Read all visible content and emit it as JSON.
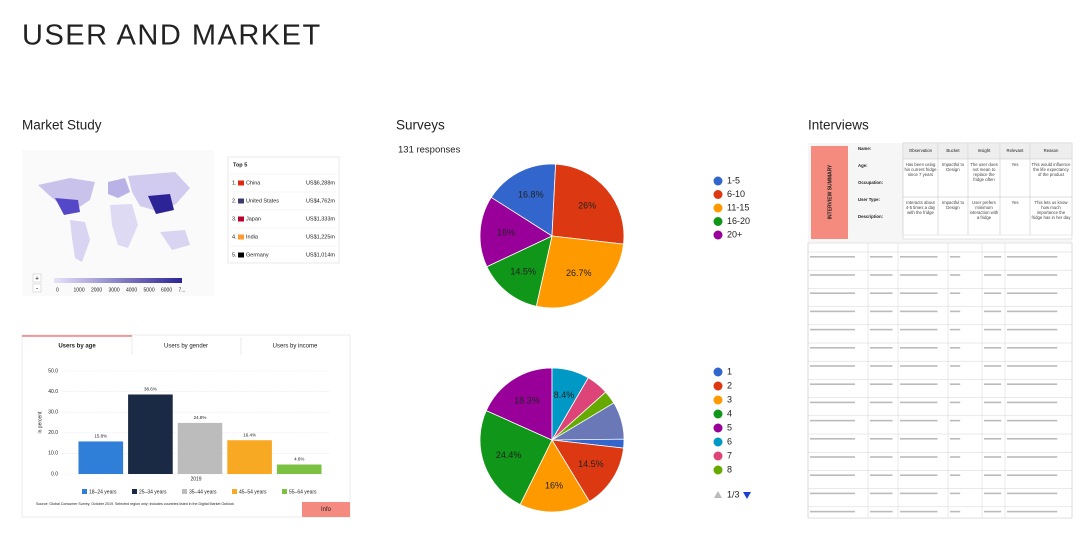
{
  "title": "USER AND MARKET",
  "sections": {
    "market": "Market Study",
    "surveys": "Surveys",
    "interviews": "Interviews"
  },
  "responses": "131 responses",
  "map": {
    "zoom_in": "+",
    "zoom_out": "-",
    "scale": [
      "0",
      "1000",
      "2000",
      "3000",
      "4000",
      "5000",
      "6000",
      "7..."
    ]
  },
  "top5": {
    "title": "Top 5",
    "rows": [
      {
        "rank": "1.",
        "country": "China",
        "value": "US$6,288m"
      },
      {
        "rank": "2.",
        "country": "United States",
        "value": "US$4,762m"
      },
      {
        "rank": "3.",
        "country": "Japan",
        "value": "US$1,333m"
      },
      {
        "rank": "4.",
        "country": "India",
        "value": "US$1,225m"
      },
      {
        "rank": "5.",
        "country": "Germany",
        "value": "US$1,014m"
      }
    ]
  },
  "tabs": [
    "Users by age",
    "Users by gender",
    "Users by income"
  ],
  "info": "Info",
  "interview": {
    "card_title": "INTERVIEW SUMMARY",
    "fields": [
      "Name:",
      "Age:",
      "Occupation:",
      "User Type:",
      "Description:"
    ],
    "headers": [
      "Observation",
      "Bucket",
      "Insight",
      "Relevant",
      "Reason"
    ],
    "rows": [
      [
        "Has been using his current fridge since 7 years",
        "Impactful to Design",
        "The user does not mean to replace the fridge often",
        "Yes",
        "This would influence the life expectancy of the product"
      ],
      [
        "Interacts about 4-5 times a day with the fridge",
        "Impactful to Design",
        "User prefers minimum interaction with a fridge",
        "Yes",
        "This lets us know how much importance the fridge has in her day"
      ]
    ]
  },
  "chart_data": [
    {
      "type": "bar",
      "categories": [
        "2019"
      ],
      "ylabel": "in percent",
      "ylim": [
        0,
        50
      ],
      "yticks": [
        {
          "value": 0,
          "label": "0.0"
        },
        {
          "value": 10,
          "label": "10.0"
        },
        {
          "value": 20,
          "label": "20.0"
        },
        {
          "value": 30,
          "label": "30.0"
        },
        {
          "value": 40,
          "label": "40.0"
        },
        {
          "value": 50,
          "label": "50.0"
        }
      ],
      "grid": true,
      "series": [
        {
          "name": "18–24 years",
          "color": "#2f7ed8",
          "values": [
            15.8
          ],
          "value_labels": [
            "15.8%"
          ]
        },
        {
          "name": "25–34 years",
          "color": "#1b2a44",
          "values": [
            38.6
          ],
          "value_labels": [
            "38.6%"
          ]
        },
        {
          "name": "35–44 years",
          "color": "#bcbcbc",
          "values": [
            24.8
          ],
          "value_labels": [
            "24.8%"
          ]
        },
        {
          "name": "45–54 years",
          "color": "#f8a923",
          "values": [
            16.4
          ],
          "value_labels": [
            "16.4%"
          ]
        },
        {
          "name": "55–64 years",
          "color": "#7cc142",
          "values": [
            4.6
          ],
          "value_labels": [
            "4.6%"
          ]
        }
      ],
      "source": "Source: Global Consumer Survey, October 2019. Selected region only; includes countries listed in the Digital Market Outlook"
    },
    {
      "type": "pie",
      "categories": [
        "1-5",
        "6-10",
        "11-15",
        "16-20",
        "20+"
      ],
      "values": [
        16.8,
        26,
        26.7,
        14.5,
        16
      ],
      "value_labels": [
        "16.8%",
        "26%",
        "26.7%",
        "14.5%",
        "16%"
      ],
      "colors": [
        "#3366cc",
        "#dc3912",
        "#ff9900",
        "#109618",
        "#990099"
      ]
    },
    {
      "type": "pie",
      "categories": [
        "1",
        "2",
        "3",
        "4",
        "5",
        "6",
        "7",
        "8"
      ],
      "values": [
        2,
        14.5,
        16,
        24.4,
        18.3,
        8.4,
        5,
        3
      ],
      "value_labels": [
        null,
        "14.5%",
        "16%",
        "24.4%",
        "18.3%",
        "8.4%",
        null,
        null
      ],
      "colors": [
        "#3366cc",
        "#dc3912",
        "#ff9900",
        "#109618",
        "#990099",
        "#0099c6",
        "#dd4477",
        "#66aa00"
      ],
      "pagination": "1/3"
    }
  ]
}
